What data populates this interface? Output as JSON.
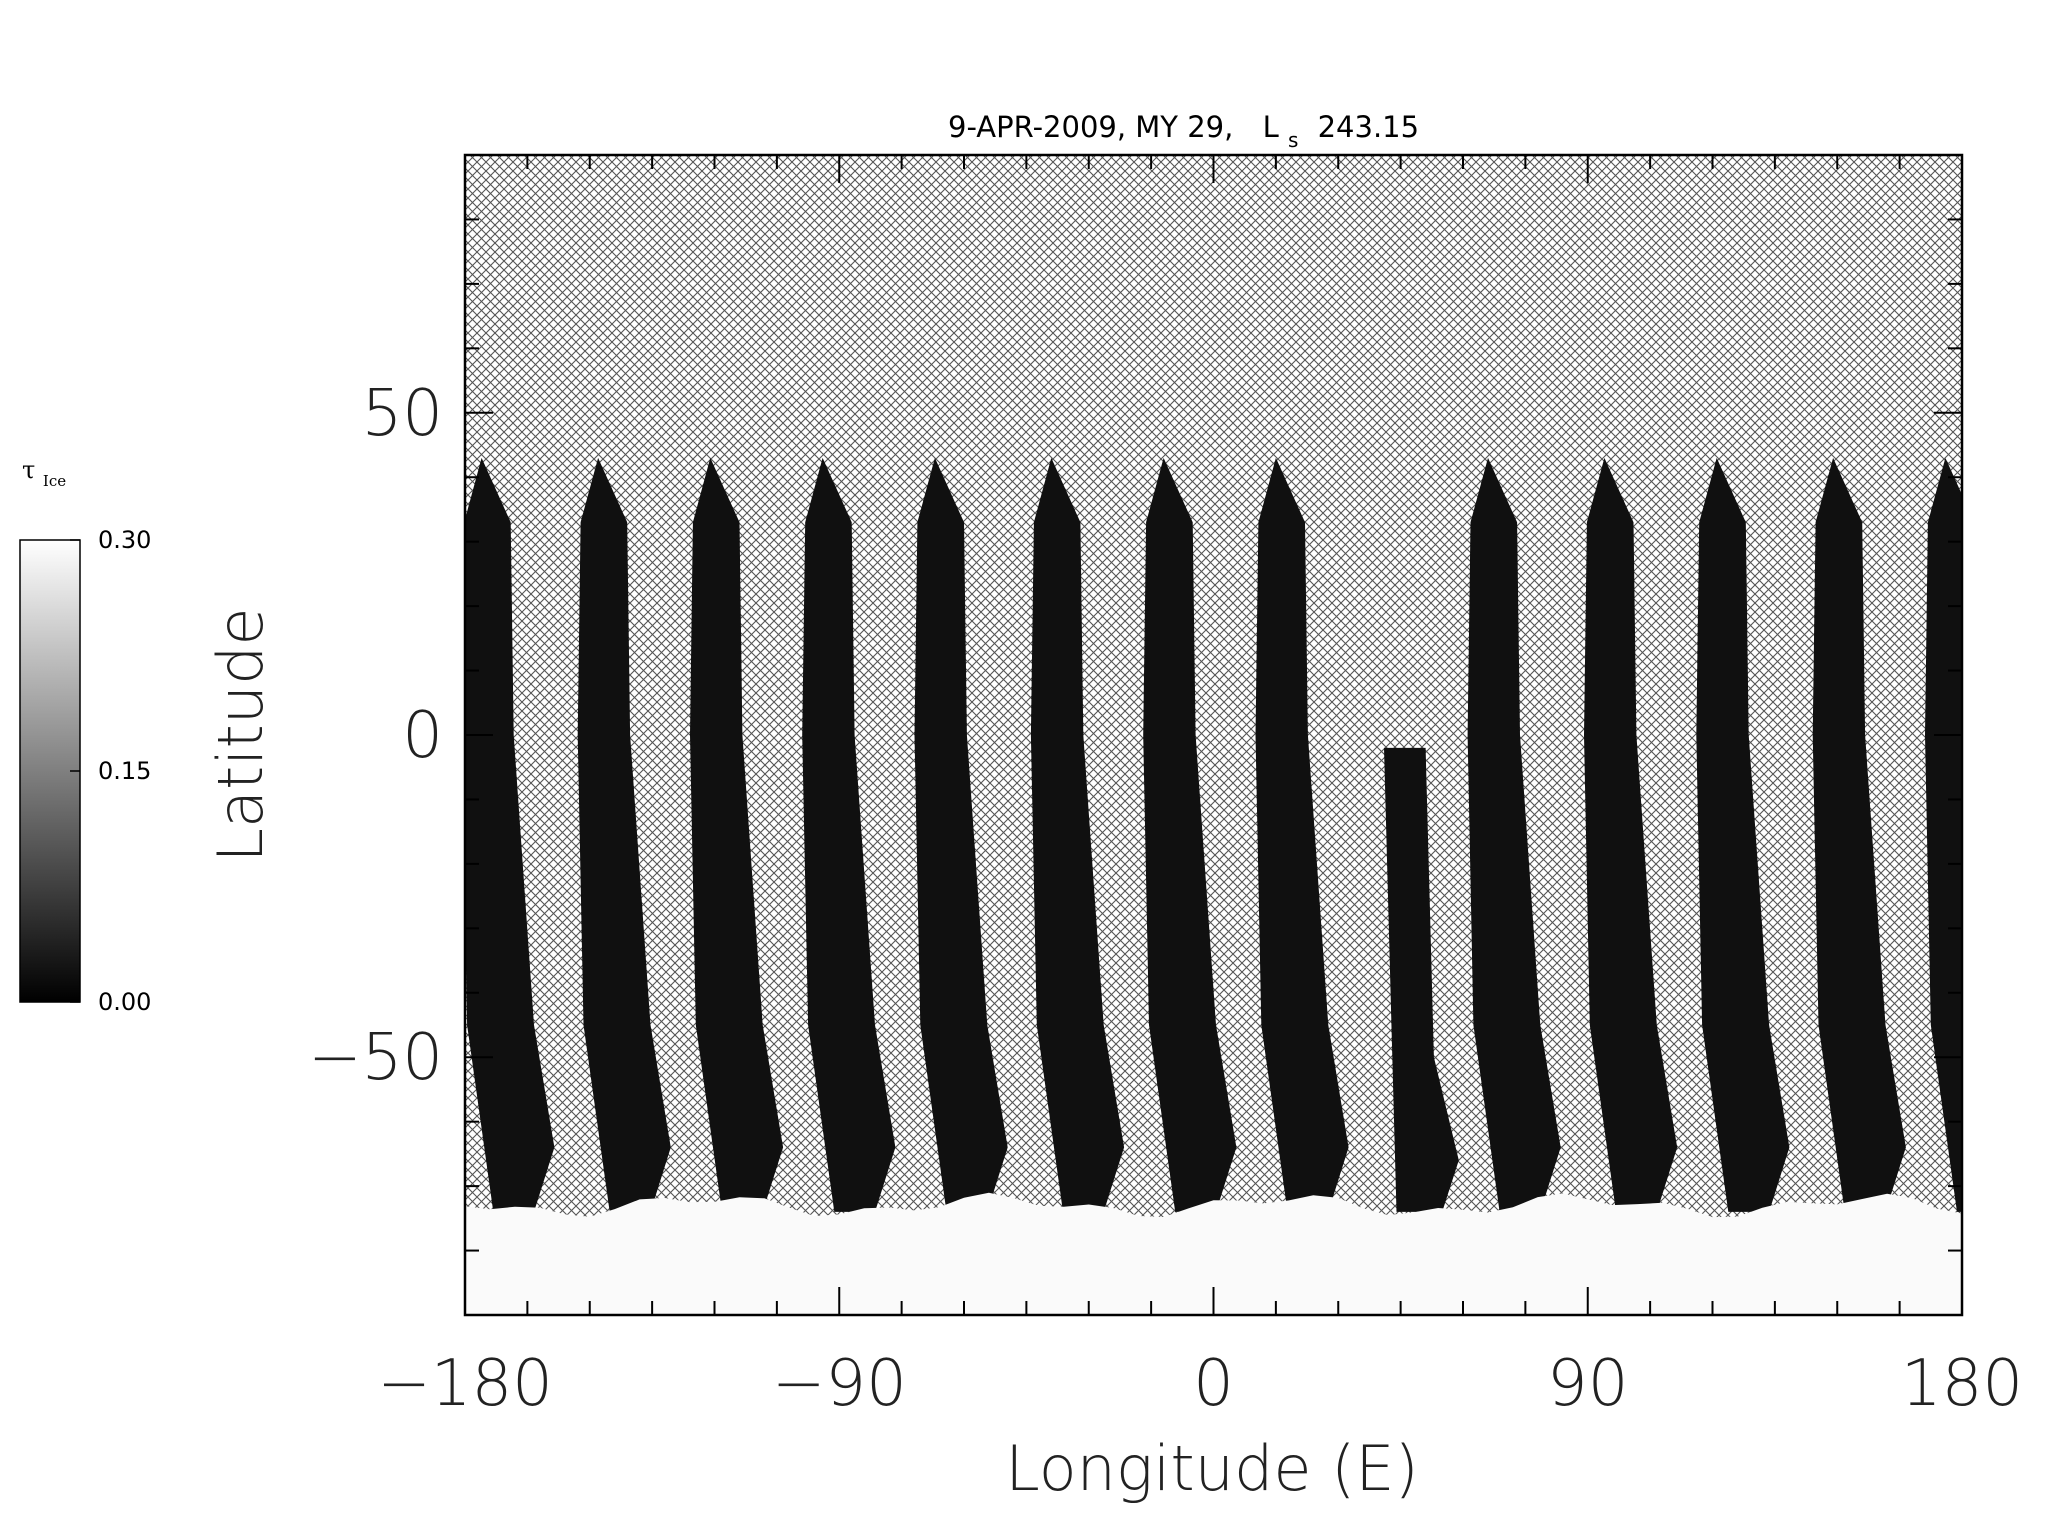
{
  "chart_data": {
    "type": "heatmap",
    "title": {
      "date": "9-APR-2009, MY 29,",
      "ls_symbol": "L",
      "ls_subscript": "s",
      "ls_value": "243.15"
    },
    "xlabel": "Longitude (E)",
    "ylabel": "Latitude",
    "xlim": [
      -180,
      180
    ],
    "ylim": [
      -90,
      90
    ],
    "xticks": [
      {
        "value": -180,
        "label": "−180"
      },
      {
        "value": -90,
        "label": "−90"
      },
      {
        "value": 0,
        "label": "0"
      },
      {
        "value": 90,
        "label": "90"
      },
      {
        "value": 180,
        "label": "180"
      }
    ],
    "yticks": [
      {
        "value": 50,
        "label": "50"
      },
      {
        "value": 0,
        "label": "0"
      },
      {
        "value": -50,
        "label": "−50"
      }
    ],
    "x_minor_step": 15,
    "y_minor_step": 10,
    "colorbar": {
      "label_symbol": "τ",
      "label_subscript": "Ice",
      "range": [
        0.0,
        0.3
      ],
      "ticks": [
        {
          "value": 0.3,
          "label": "0.30"
        },
        {
          "value": 0.15,
          "label": "0.15"
        },
        {
          "value": 0.0,
          "label": "0.00"
        }
      ],
      "colormap": "grayscale"
    },
    "no_data_fill": "crosshatch",
    "orbit_swaths": {
      "value": 0.0,
      "lat_top": 43,
      "lat_shoulder": 33,
      "lat_bottom_corner": -64,
      "lat_bottom": -74,
      "top_lon": [
        -176,
        -148,
        -121,
        -94,
        -67,
        -39,
        -12,
        15,
        66,
        94,
        121,
        149,
        176
      ],
      "width_deg": 14
    },
    "partial_swath": {
      "value": 0.0,
      "lon_top": [
        41,
        51
      ],
      "lat_top": -2,
      "lat_bottom": -74
    },
    "polar_cap": {
      "value": 0.3,
      "lat_edge": -73,
      "lat_min": -90
    }
  }
}
